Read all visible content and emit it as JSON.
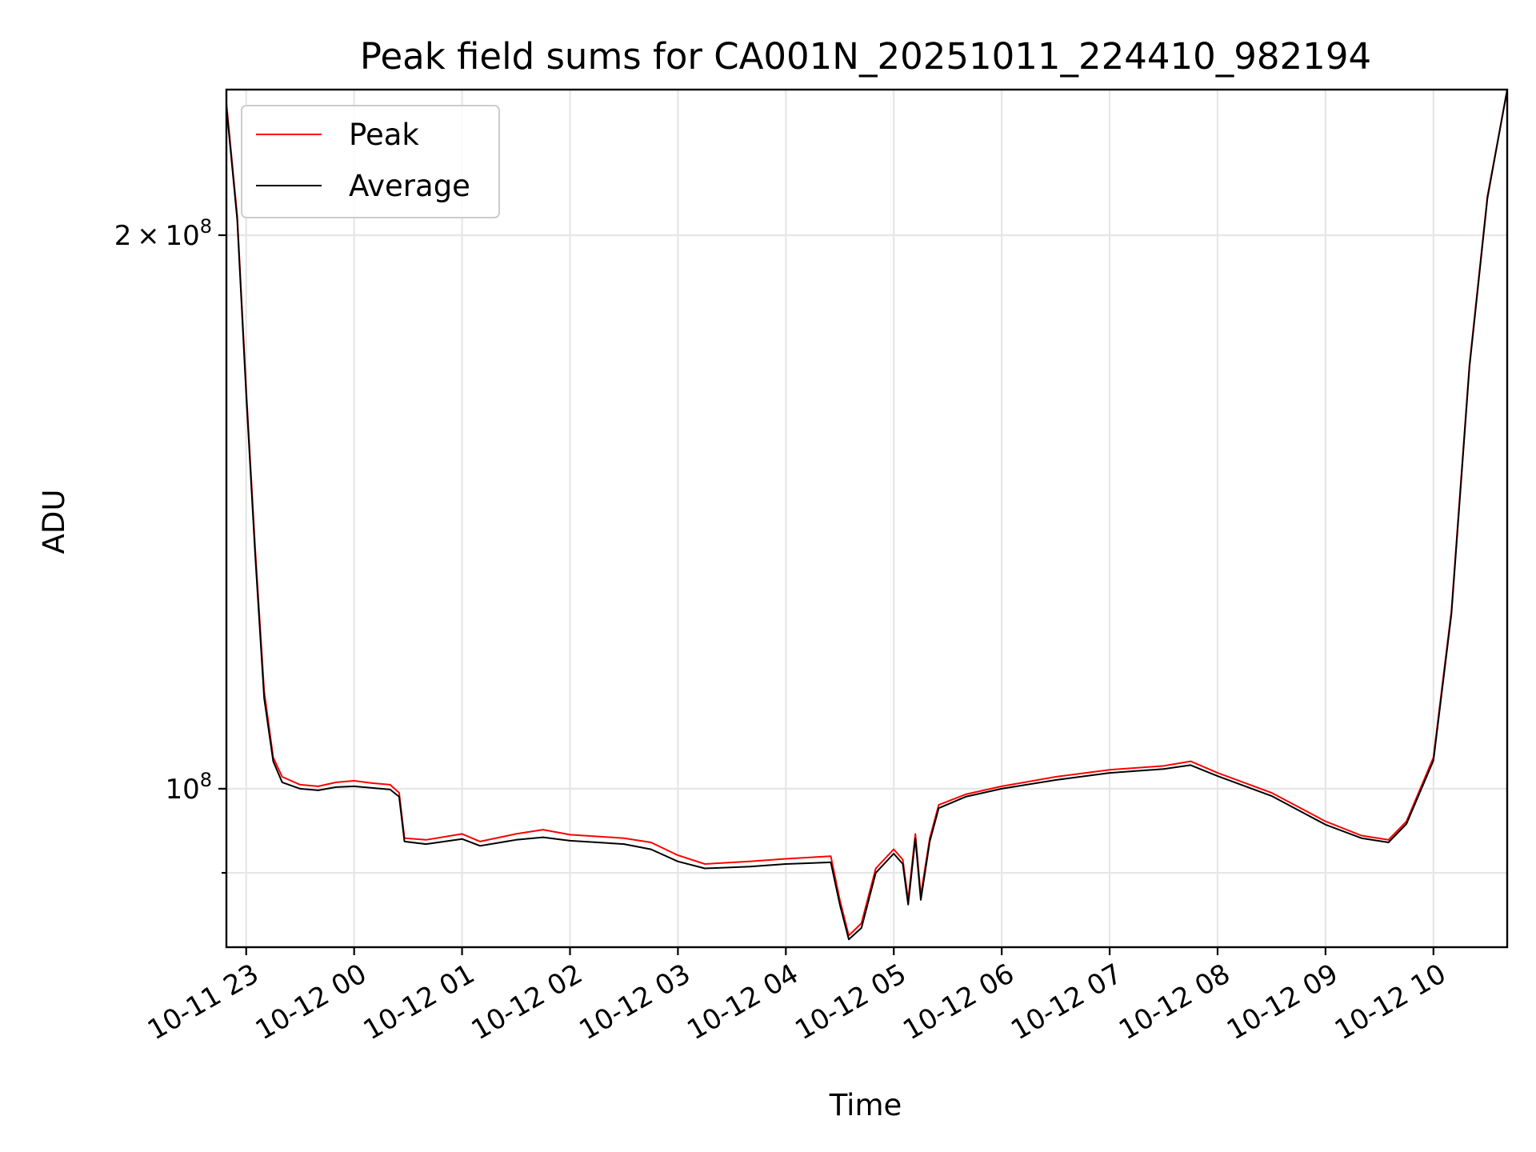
{
  "chart_data": {
    "type": "line",
    "title": "Peak field sums for CA001N_20251011_224410_982194",
    "xlabel": "Time",
    "ylabel": "ADU",
    "yscale": "log",
    "ylim": [
      82000000,
      240000000
    ],
    "xlim": [
      "2025-10-11 22:49",
      "2025-10-12 10:41"
    ],
    "x_tick_labels": [
      "10-11 23",
      "10-12 00",
      "10-12 01",
      "10-12 02",
      "10-12 03",
      "10-12 04",
      "10-12 05",
      "10-12 06",
      "10-12 07",
      "10-12 08",
      "10-12 09",
      "10-12 10"
    ],
    "y_major_ticks": [
      {
        "value": 100000000,
        "label": "10^8"
      },
      {
        "value": 200000000,
        "label": "2×10^8"
      }
    ],
    "y_minor_ticks": [
      90000000
    ],
    "grid": true,
    "legend": "top-left",
    "series": [
      {
        "name": "Peak",
        "color": "#ff0000",
        "points": [
          [
            "2025-10-11 22:49",
            236000000
          ],
          [
            "2025-10-11 22:55",
            205000000
          ],
          [
            "2025-10-11 23:00",
            165000000
          ],
          [
            "2025-10-11 23:05",
            135000000
          ],
          [
            "2025-10-11 23:10",
            113000000
          ],
          [
            "2025-10-11 23:15",
            104000000
          ],
          [
            "2025-10-11 23:20",
            101500000
          ],
          [
            "2025-10-11 23:30",
            100500000
          ],
          [
            "2025-10-11 23:40",
            100300000
          ],
          [
            "2025-10-11 23:50",
            100800000
          ],
          [
            "2025-10-12 00:00",
            101000000
          ],
          [
            "2025-10-12 00:10",
            100700000
          ],
          [
            "2025-10-12 00:20",
            100500000
          ],
          [
            "2025-10-12 00:25",
            99500000
          ],
          [
            "2025-10-12 00:28",
            94000000
          ],
          [
            "2025-10-12 00:40",
            93800000
          ],
          [
            "2025-10-12 01:00",
            94500000
          ],
          [
            "2025-10-12 01:10",
            93600000
          ],
          [
            "2025-10-12 01:30",
            94500000
          ],
          [
            "2025-10-12 01:45",
            95000000
          ],
          [
            "2025-10-12 02:00",
            94400000
          ],
          [
            "2025-10-12 02:30",
            94000000
          ],
          [
            "2025-10-12 02:45",
            93500000
          ],
          [
            "2025-10-12 03:00",
            92000000
          ],
          [
            "2025-10-12 03:15",
            91000000
          ],
          [
            "2025-10-12 03:40",
            91300000
          ],
          [
            "2025-10-12 04:00",
            91600000
          ],
          [
            "2025-10-12 04:25",
            91900000
          ],
          [
            "2025-10-12 04:30",
            87000000
          ],
          [
            "2025-10-12 04:35",
            83200000
          ],
          [
            "2025-10-12 04:42",
            84500000
          ],
          [
            "2025-10-12 04:50",
            90500000
          ],
          [
            "2025-10-12 05:00",
            92700000
          ],
          [
            "2025-10-12 05:05",
            91500000
          ],
          [
            "2025-10-12 05:08",
            87000000
          ],
          [
            "2025-10-12 05:12",
            94500000
          ],
          [
            "2025-10-12 05:15",
            87500000
          ],
          [
            "2025-10-12 05:20",
            94000000
          ],
          [
            "2025-10-12 05:25",
            98000000
          ],
          [
            "2025-10-12 05:40",
            99300000
          ],
          [
            "2025-10-12 06:00",
            100300000
          ],
          [
            "2025-10-12 06:30",
            101500000
          ],
          [
            "2025-10-12 07:00",
            102400000
          ],
          [
            "2025-10-12 07:30",
            102900000
          ],
          [
            "2025-10-12 07:45",
            103500000
          ],
          [
            "2025-10-12 08:00",
            102000000
          ],
          [
            "2025-10-12 08:30",
            99500000
          ],
          [
            "2025-10-12 09:00",
            96000000
          ],
          [
            "2025-10-12 09:20",
            94300000
          ],
          [
            "2025-10-12 09:35",
            93800000
          ],
          [
            "2025-10-12 09:45",
            96000000
          ],
          [
            "2025-10-12 10:00",
            104000000
          ],
          [
            "2025-10-12 10:10",
            125000000
          ],
          [
            "2025-10-12 10:20",
            170000000
          ],
          [
            "2025-10-12 10:30",
            210000000
          ],
          [
            "2025-10-12 10:41",
            240000000
          ]
        ]
      },
      {
        "name": "Average",
        "color": "#000000",
        "points": [
          [
            "2025-10-11 22:49",
            235000000
          ],
          [
            "2025-10-11 22:55",
            204000000
          ],
          [
            "2025-10-11 23:00",
            164000000
          ],
          [
            "2025-10-11 23:05",
            134000000
          ],
          [
            "2025-10-11 23:10",
            112000000
          ],
          [
            "2025-10-11 23:15",
            103500000
          ],
          [
            "2025-10-11 23:20",
            100800000
          ],
          [
            "2025-10-11 23:30",
            100000000
          ],
          [
            "2025-10-11 23:40",
            99800000
          ],
          [
            "2025-10-11 23:50",
            100200000
          ],
          [
            "2025-10-12 00:00",
            100300000
          ],
          [
            "2025-10-12 00:10",
            100100000
          ],
          [
            "2025-10-12 00:20",
            99900000
          ],
          [
            "2025-10-12 00:25",
            99000000
          ],
          [
            "2025-10-12 00:28",
            93600000
          ],
          [
            "2025-10-12 00:40",
            93300000
          ],
          [
            "2025-10-12 01:00",
            93900000
          ],
          [
            "2025-10-12 01:10",
            93100000
          ],
          [
            "2025-10-12 01:30",
            93800000
          ],
          [
            "2025-10-12 01:45",
            94100000
          ],
          [
            "2025-10-12 02:00",
            93700000
          ],
          [
            "2025-10-12 02:30",
            93300000
          ],
          [
            "2025-10-12 02:45",
            92700000
          ],
          [
            "2025-10-12 03:00",
            91300000
          ],
          [
            "2025-10-12 03:15",
            90500000
          ],
          [
            "2025-10-12 03:40",
            90700000
          ],
          [
            "2025-10-12 04:00",
            91000000
          ],
          [
            "2025-10-12 04:25",
            91200000
          ],
          [
            "2025-10-12 04:30",
            86500000
          ],
          [
            "2025-10-12 04:35",
            82800000
          ],
          [
            "2025-10-12 04:42",
            84000000
          ],
          [
            "2025-10-12 04:50",
            90000000
          ],
          [
            "2025-10-12 05:00",
            92200000
          ],
          [
            "2025-10-12 05:05",
            91000000
          ],
          [
            "2025-10-12 05:08",
            86500000
          ],
          [
            "2025-10-12 05:12",
            94000000
          ],
          [
            "2025-10-12 05:15",
            87000000
          ],
          [
            "2025-10-12 05:20",
            93600000
          ],
          [
            "2025-10-12 05:25",
            97600000
          ],
          [
            "2025-10-12 05:40",
            99000000
          ],
          [
            "2025-10-12 06:00",
            100000000
          ],
          [
            "2025-10-12 06:30",
            101100000
          ],
          [
            "2025-10-12 07:00",
            102000000
          ],
          [
            "2025-10-12 07:30",
            102500000
          ],
          [
            "2025-10-12 07:45",
            103000000
          ],
          [
            "2025-10-12 08:00",
            101600000
          ],
          [
            "2025-10-12 08:30",
            99100000
          ],
          [
            "2025-10-12 09:00",
            95600000
          ],
          [
            "2025-10-12 09:20",
            94000000
          ],
          [
            "2025-10-12 09:35",
            93500000
          ],
          [
            "2025-10-12 09:45",
            95700000
          ],
          [
            "2025-10-12 10:00",
            103600000
          ],
          [
            "2025-10-12 10:10",
            124500000
          ],
          [
            "2025-10-12 10:20",
            169500000
          ],
          [
            "2025-10-12 10:30",
            209500000
          ],
          [
            "2025-10-12 10:41",
            240000000
          ]
        ]
      }
    ]
  }
}
